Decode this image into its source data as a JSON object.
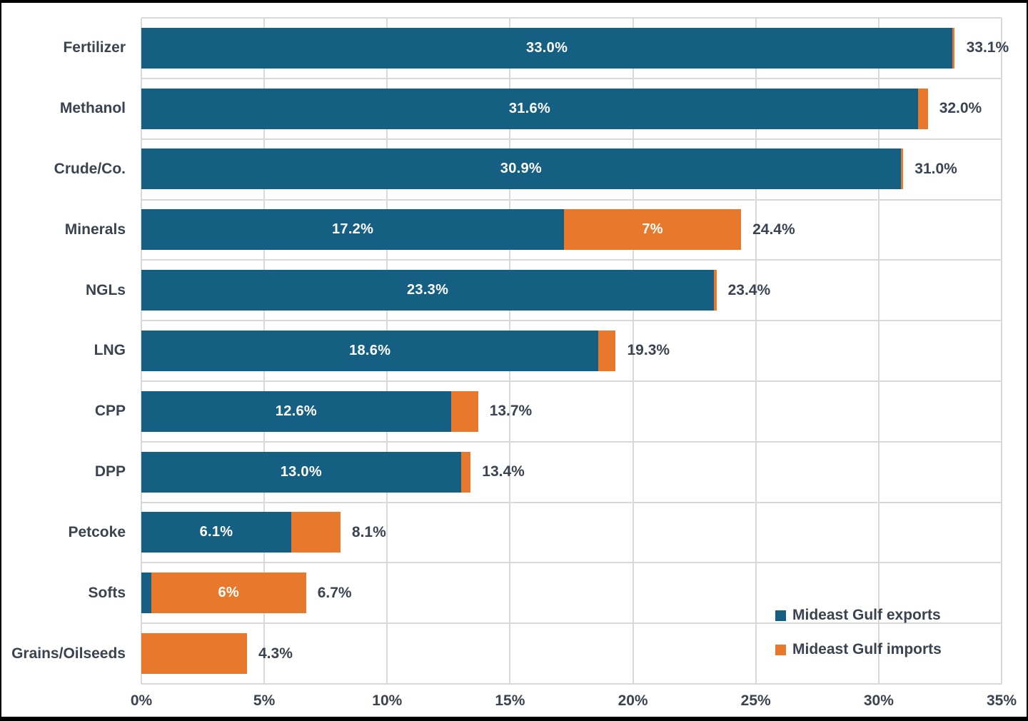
{
  "chart_data": {
    "type": "bar",
    "orientation": "horizontal",
    "stacked": true,
    "categories": [
      "Fertilizer",
      "Methanol",
      "Crude/Co.",
      "Minerals",
      "NGLs",
      "LNG",
      "CPP",
      "DPP",
      "Petcoke",
      "Softs",
      "Grains/Oilseeds"
    ],
    "series": [
      {
        "name": "Mideast Gulf exports",
        "color": "#155f82",
        "values": [
          33.0,
          31.6,
          30.9,
          17.2,
          23.3,
          18.6,
          12.6,
          13.0,
          6.1,
          0.4,
          0
        ],
        "labels": [
          "33.0%",
          "31.6%",
          "30.9%",
          "17.2%",
          "23.3%",
          "18.6%",
          "12.6%",
          "13.0%",
          "6.1%",
          "",
          ""
        ]
      },
      {
        "name": "Mideast Gulf imports",
        "color": "#e7782c",
        "values": [
          0.1,
          0.4,
          0.1,
          7.2,
          0.1,
          0.7,
          1.1,
          0.4,
          2.0,
          6.3,
          4.3
        ],
        "labels": [
          "",
          "",
          "",
          "7%",
          "",
          "",
          "",
          "",
          "",
          "6%",
          ""
        ]
      }
    ],
    "total_labels": [
      "33.1%",
      "32.0%",
      "31.0%",
      "24.4%",
      "23.4%",
      "19.3%",
      "13.7%",
      "13.4%",
      "8.1%",
      "6.7%",
      "4.3%"
    ],
    "x_ticks": [
      "0%",
      "5%",
      "10%",
      "15%",
      "20%",
      "25%",
      "30%",
      "35%"
    ],
    "xlim": [
      0,
      35
    ],
    "grid": true,
    "legend_position": "bottom-right",
    "colors": {
      "text": "#3a4350",
      "gridline": "#d9d9d9",
      "bar_value_text": "#ffffff",
      "background": "#ffffff",
      "frame": "#000000"
    }
  }
}
